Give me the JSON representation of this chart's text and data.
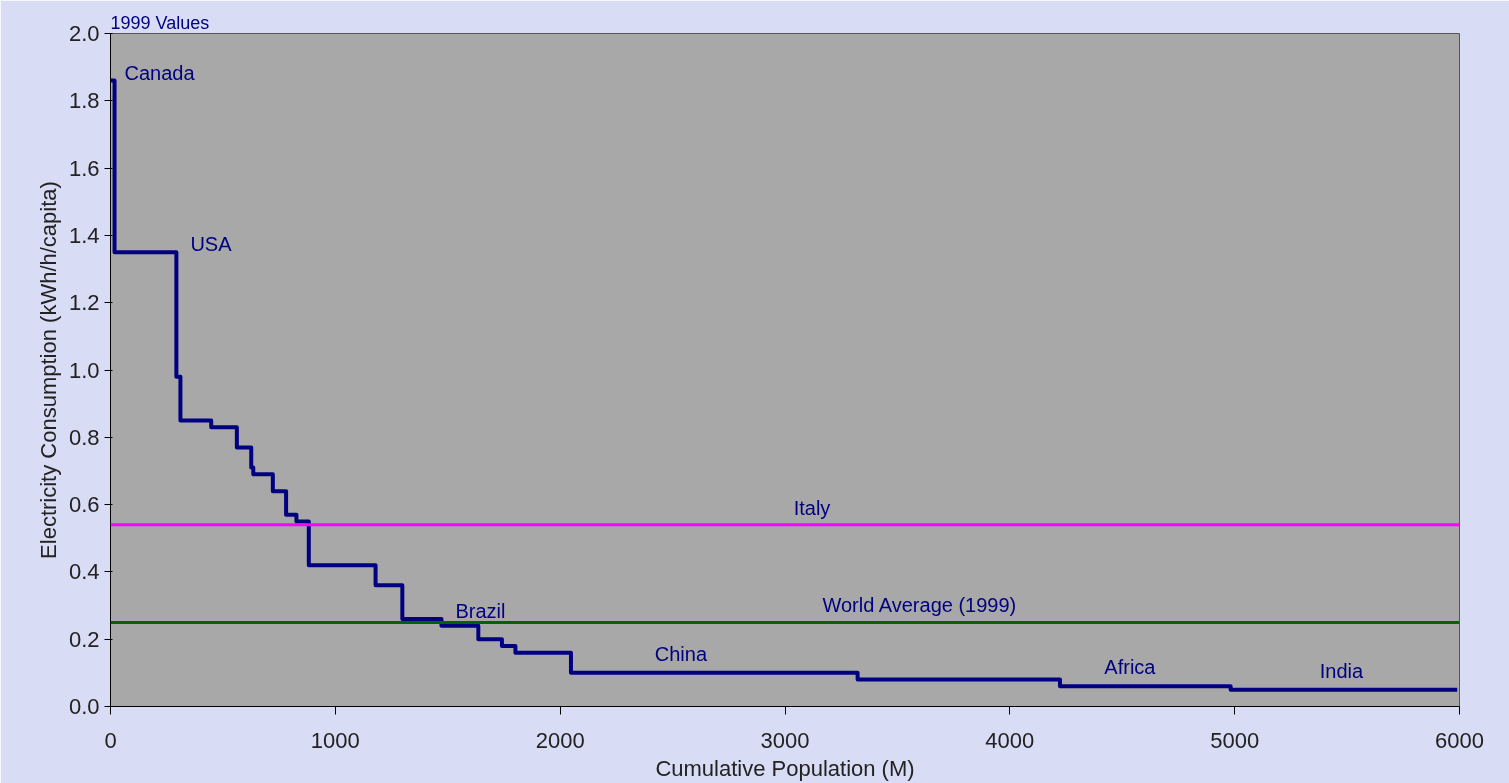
{
  "chart_data": {
    "type": "step",
    "xlabel": "Cumulative Population (M)",
    "ylabel": "Electricity Consumption (kWh/h/capita)",
    "x": [
      0,
      18,
      293,
      311,
      448,
      562,
      626,
      635,
      722,
      781,
      827,
      882,
      1179,
      1298,
      1472,
      1636,
      1741,
      1801,
      2048,
      3323,
      4223,
      4982,
      5990
    ],
    "series": [
      {
        "color": "#000080",
        "values": [
          1.86,
          1.35,
          0.98,
          0.85,
          0.83,
          0.77,
          0.71,
          0.69,
          0.64,
          0.57,
          0.55,
          0.42,
          0.36,
          0.26,
          0.24,
          0.2,
          0.18,
          0.16,
          0.1,
          0.08,
          0.06,
          0.05,
          0.05
        ]
      }
    ],
    "xlim": [
      0,
      6000
    ],
    "xticks": [
      0,
      1000,
      2000,
      3000,
      4000,
      5000,
      6000
    ],
    "ylim": [
      0,
      2
    ],
    "yticks": [
      {
        "value": 0,
        "label": "0.0"
      },
      {
        "value": 0.2,
        "label": "0.2"
      },
      {
        "value": 0.4,
        "label": "0.4"
      },
      {
        "value": 0.6,
        "label": "0.6"
      },
      {
        "value": 0.8,
        "label": "0.8"
      },
      {
        "value": 1.0,
        "label": "1.0"
      },
      {
        "value": 1.2,
        "label": "1.2"
      },
      {
        "value": 1.4,
        "label": "1.4"
      },
      {
        "value": 1.6,
        "label": "1.6"
      },
      {
        "value": 1.8,
        "label": "1.8"
      },
      {
        "value": 2.0,
        "label": "2.0"
      }
    ],
    "grid": false,
    "marker": "none",
    "line_style": "solid",
    "ref_lines": [
      {
        "axis": "y",
        "value": 0.54,
        "label": "Italy",
        "color": "#ff00ff"
      },
      {
        "axis": "y",
        "value": 0.25,
        "label": "World Average (1999)",
        "color": "#006400"
      }
    ],
    "annotations": [
      "1999 Values",
      {
        "text": "Canada",
        "x": 0,
        "y": 1.86
      },
      {
        "text": "USA",
        "x": 293,
        "y": 1.35
      },
      {
        "text": "Brazil",
        "x": 1472,
        "y": 0.26
      },
      {
        "text": "China",
        "x": 2537,
        "y": 0.1
      },
      {
        "text": "Africa",
        "x": 4534,
        "y": 0.06
      },
      {
        "text": "India",
        "x": 5475,
        "y": 0.05
      }
    ]
  }
}
